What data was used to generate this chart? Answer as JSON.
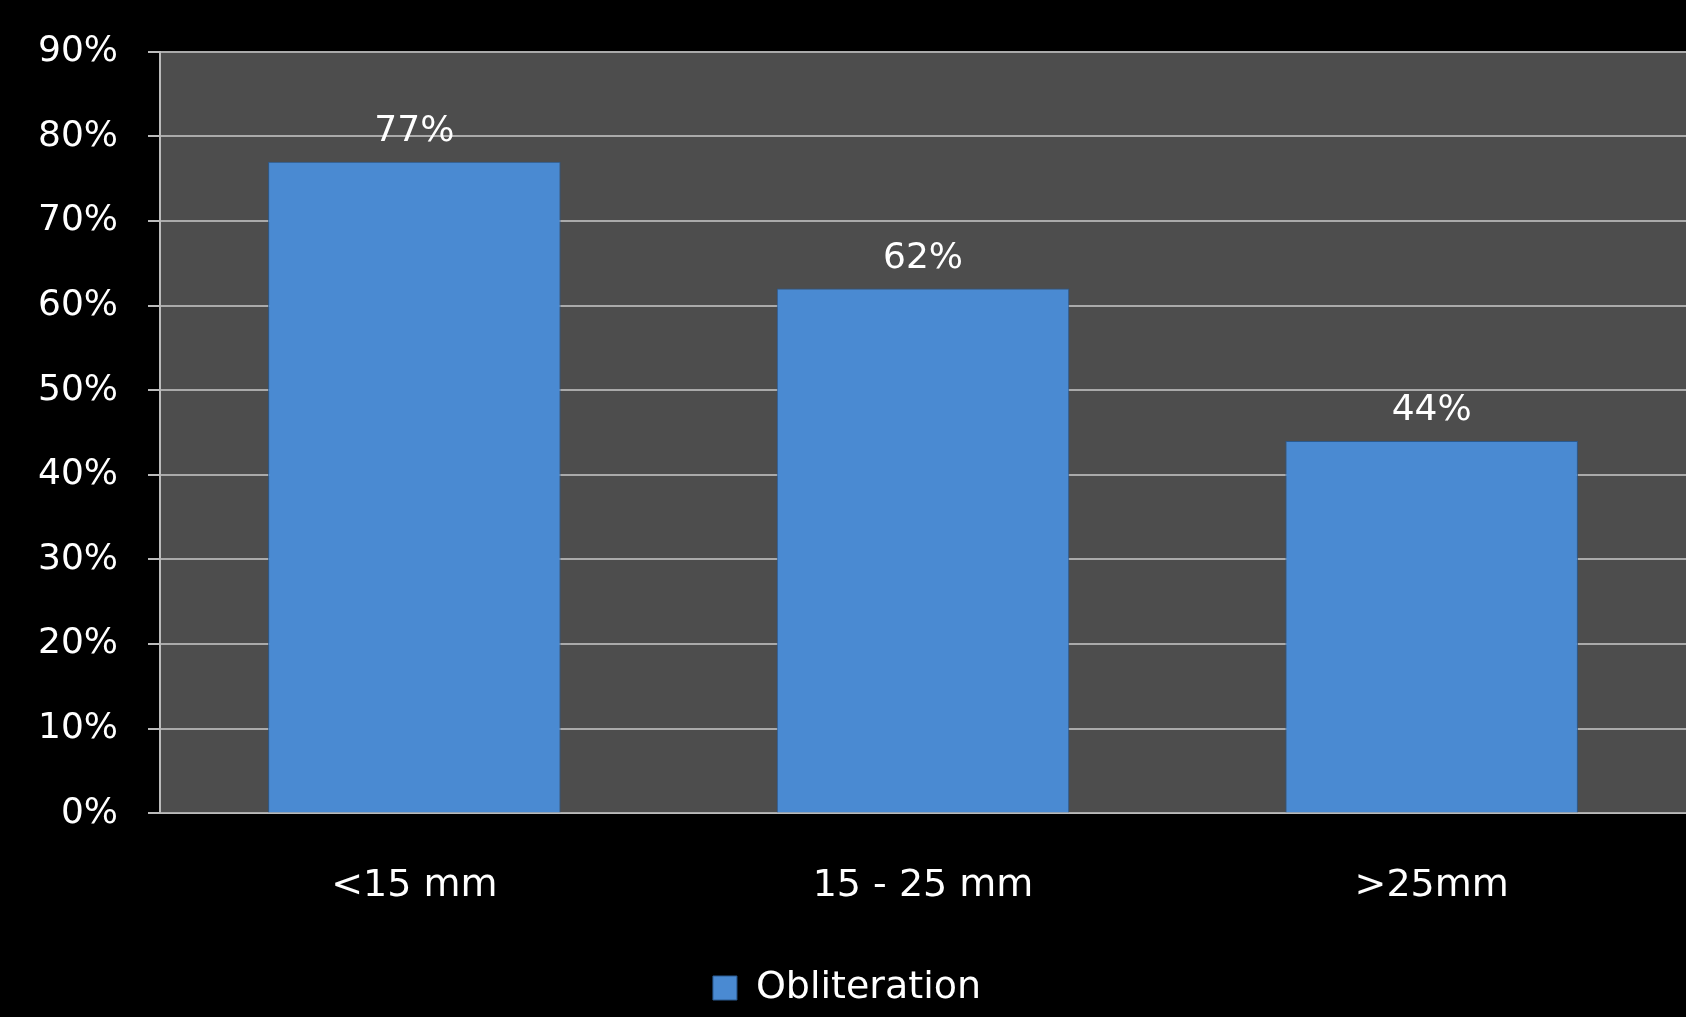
{
  "chart_data": {
    "type": "bar",
    "categories": [
      "<15 mm",
      "15 - 25 mm",
      ">25mm"
    ],
    "series": [
      {
        "name": "Obliteration",
        "color": "#4a8ad2",
        "values": [
          77,
          62,
          44
        ]
      }
    ],
    "value_labels": [
      "77%",
      "62%",
      "44%"
    ],
    "ylim": [
      0,
      90
    ],
    "yticks": [
      {
        "value": 0,
        "label": "0%"
      },
      {
        "value": 10,
        "label": "10%"
      },
      {
        "value": 20,
        "label": "20%"
      },
      {
        "value": 30,
        "label": "30%"
      },
      {
        "value": 40,
        "label": "40%"
      },
      {
        "value": 50,
        "label": "50%"
      },
      {
        "value": 60,
        "label": "60%"
      },
      {
        "value": 70,
        "label": "70%"
      },
      {
        "value": 80,
        "label": "80%"
      },
      {
        "value": 90,
        "label": "90%"
      }
    ],
    "grid": "y",
    "legend": "bottom"
  }
}
